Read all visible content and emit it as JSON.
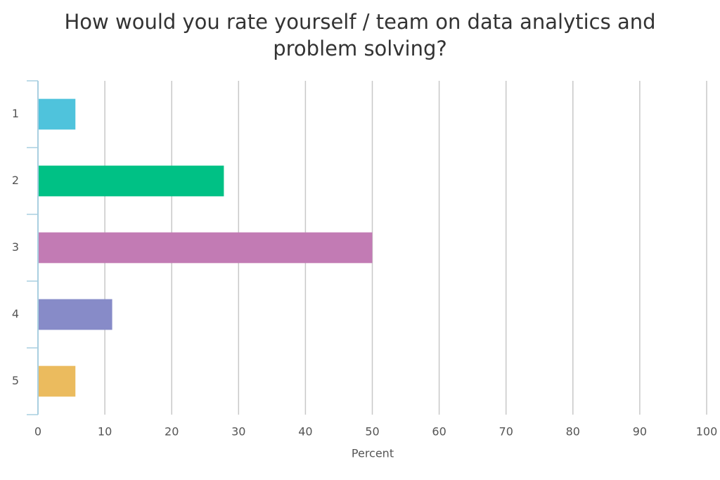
{
  "chart_data": {
    "type": "hbar",
    "title": "How would you rate yourself / team on data analytics and problem solving?",
    "x_label": "Percent",
    "categories": [
      "1",
      "2",
      "3",
      "4",
      "5"
    ],
    "values": [
      5.6,
      27.8,
      50,
      11.1,
      5.6
    ],
    "colors": [
      "#4fc3dc",
      "#00c185",
      "#c27bb4",
      "#878bc8",
      "#ebbb5e"
    ],
    "xlim": [
      0,
      100
    ],
    "xticks": [
      0,
      10,
      20,
      30,
      40,
      50,
      60,
      70,
      80,
      90,
      100
    ],
    "grid": true
  }
}
